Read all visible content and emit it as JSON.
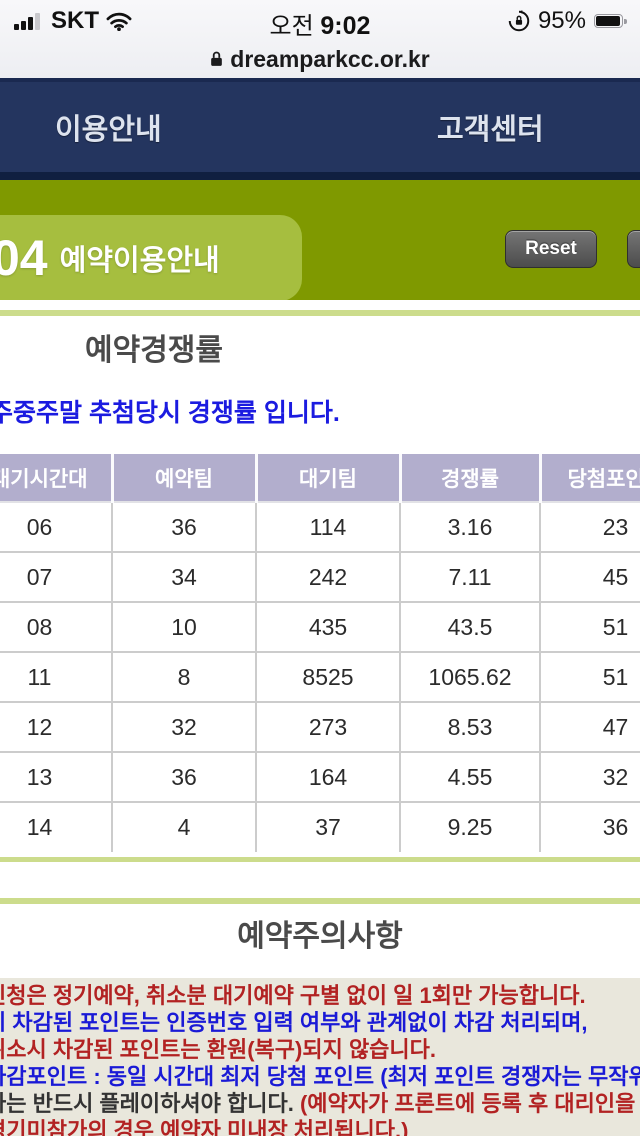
{
  "status_bar": {
    "carrier": "SKT",
    "time_prefix": "오전",
    "time": "9:02",
    "battery_pct": "95%"
  },
  "url_bar": {
    "domain": "dreamparkcc.or.kr"
  },
  "nav": {
    "left_label": "이용안내",
    "right_label": "고객센터"
  },
  "page_header": {
    "number": "04",
    "title": "예약이용안내",
    "reset_label": "Reset"
  },
  "section_rates": {
    "title": "예약경쟁률",
    "subtitle": "주중주말 추첨당시 경쟁률 입니다."
  },
  "table": {
    "headers": [
      "대기시간대",
      "예약팀",
      "대기팀",
      "경쟁률",
      "당첨포인트"
    ],
    "rows": [
      [
        "06",
        "36",
        "114",
        "3.16",
        "23"
      ],
      [
        "07",
        "34",
        "242",
        "7.11",
        "45"
      ],
      [
        "08",
        "10",
        "435",
        "43.5",
        "51"
      ],
      [
        "11",
        "8",
        "8525",
        "1065.62",
        "51"
      ],
      [
        "12",
        "32",
        "273",
        "8.53",
        "47"
      ],
      [
        "13",
        "36",
        "164",
        "4.55",
        "32"
      ],
      [
        "14",
        "4",
        "37",
        "9.25",
        "36"
      ]
    ]
  },
  "section_notice": {
    "title": "예약주의사항",
    "notices": [
      {
        "segments": [
          {
            "text": "신청은 정기예약, 취소분 대기예약 구별 없이 일 1회만 가능합니다.",
            "color": "red"
          }
        ]
      },
      {
        "segments": [
          {
            "text": "시 차감된 포인트는 인증번호 입력 여부와 관계없이 차감 처리되며,",
            "color": "blue"
          }
        ]
      },
      {
        "segments": [
          {
            "text": "취소시 차감된 포인트는 환원(복구)되지 않습니다.",
            "color": "red"
          }
        ]
      },
      {
        "segments": [
          {
            "text": "차감포인트 : 동일 시간대 최저 당첨 포인트 (최저 포인트 경쟁자는 무작위",
            "color": "blue"
          }
        ]
      },
      {
        "segments": [
          {
            "text": "자는 반드시 플레이하셔야 합니다. ",
            "color": "dark"
          },
          {
            "text": "(예약자가 프론트에 등록 후 대리인을",
            "color": "red"
          }
        ]
      },
      {
        "segments": [
          {
            "text": "경기미참가의 경우 예약자 미내장 처리됩니다.)",
            "color": "red"
          }
        ]
      }
    ]
  },
  "colors": {
    "navy": "#24355f",
    "olive": "#7f9900",
    "panel_green": "#a6be3f",
    "header_lavender": "#b2aecd",
    "line_green": "#ccdc8c",
    "notice_bg": "#e9e7dc",
    "red": "#b22222",
    "blue": "#1a1ad6",
    "dark": "#333333"
  },
  "icons": {
    "cellular": "cellular-signal-icon",
    "wifi": "wifi-icon",
    "rotation_lock": "rotation-lock-icon",
    "battery": "battery-icon",
    "ssl_lock": "lock-icon"
  }
}
